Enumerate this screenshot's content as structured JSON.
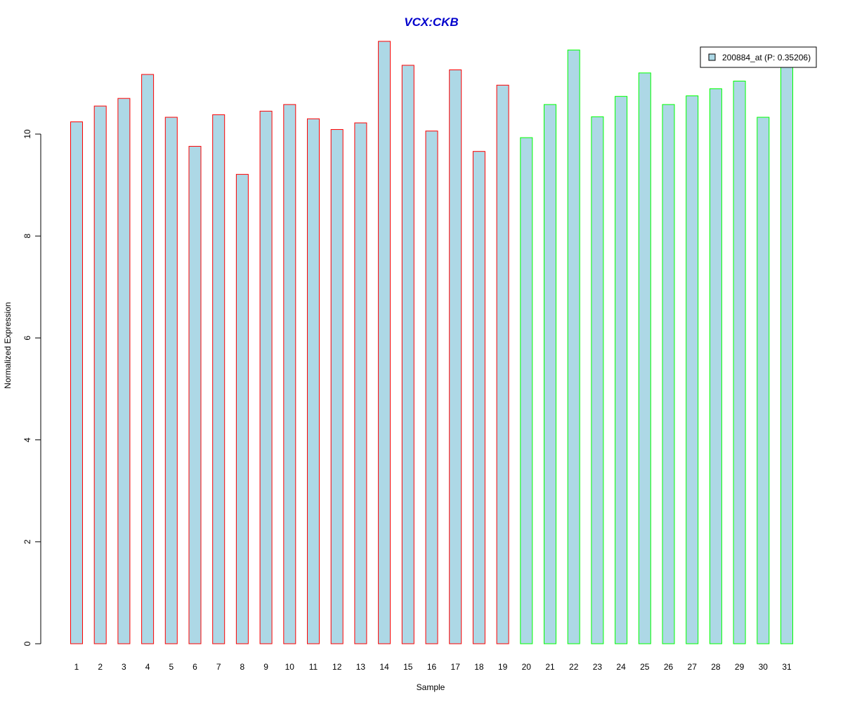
{
  "chart_data": {
    "type": "bar",
    "title": "VCX:CKB",
    "xlabel": "Sample",
    "ylabel": "Normalized Expression",
    "categories": [
      "1",
      "2",
      "3",
      "4",
      "5",
      "6",
      "7",
      "8",
      "9",
      "10",
      "11",
      "12",
      "13",
      "14",
      "15",
      "16",
      "17",
      "18",
      "19",
      "20",
      "21",
      "22",
      "23",
      "24",
      "25",
      "26",
      "27",
      "28",
      "29",
      "30",
      "31"
    ],
    "values": [
      10.24,
      10.55,
      10.7,
      11.17,
      10.33,
      9.76,
      10.38,
      9.21,
      10.45,
      10.58,
      10.3,
      10.09,
      10.22,
      11.82,
      11.35,
      10.06,
      11.26,
      9.66,
      10.96,
      9.93,
      10.58,
      11.65,
      10.34,
      10.74,
      11.2,
      10.58,
      10.75,
      10.89,
      11.04,
      10.33,
      11.4
    ],
    "groups": [
      "red",
      "red",
      "red",
      "red",
      "red",
      "red",
      "red",
      "red",
      "red",
      "red",
      "red",
      "red",
      "red",
      "red",
      "red",
      "red",
      "red",
      "red",
      "red",
      "green",
      "green",
      "green",
      "green",
      "green",
      "green",
      "green",
      "green",
      "green",
      "green",
      "green",
      "green"
    ],
    "yticks": [
      0,
      2,
      4,
      6,
      8,
      10
    ],
    "ylim": [
      0,
      12
    ],
    "legend": {
      "label": "200884_at (P: 0.35206)",
      "position": "top-right"
    },
    "colors": {
      "fill": "#add8e6",
      "border_group1": "#ff0000",
      "border_group2": "#00ff00",
      "title": "#0000cc"
    }
  }
}
